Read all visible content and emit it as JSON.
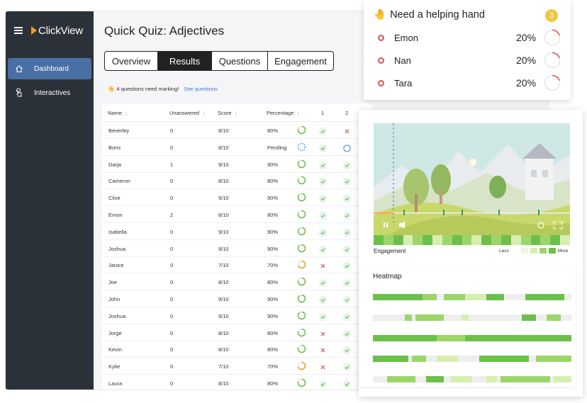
{
  "app": {
    "logo_text": "ClickView",
    "brand_color": "#f59a23",
    "nav": [
      {
        "label": "Dashboard",
        "icon": "home-icon",
        "active": true
      },
      {
        "label": "Interactives",
        "icon": "touch-icon",
        "active": false
      }
    ]
  },
  "page": {
    "title": "Quick Quiz: Adjectives",
    "tabs": [
      {
        "label": "Overview",
        "active": false
      },
      {
        "label": "Results",
        "active": true
      },
      {
        "label": "Questions",
        "active": false
      },
      {
        "label": "Engagement",
        "active": false
      }
    ],
    "notice": {
      "emoji": "👋",
      "text": "4 questions need marking!",
      "link": "See questions"
    }
  },
  "table": {
    "columns": [
      "Name",
      "Unanswered",
      "Score",
      "Percentage",
      "1",
      "2"
    ],
    "rows": [
      {
        "name": "Beverley",
        "unanswered": "0",
        "score": "8/10",
        "percentage": "80%",
        "progress": 0.8,
        "q1": "correct",
        "q2": "wrong"
      },
      {
        "name": "Boris",
        "unanswered": "0",
        "score": "8/10",
        "percentage": "Pending",
        "progress": null,
        "q1": "correct",
        "q2": "pending"
      },
      {
        "name": "Darja",
        "unanswered": "1",
        "score": "9/10",
        "percentage": "90%",
        "progress": 0.9,
        "q1": "correct",
        "q2": "correct"
      },
      {
        "name": "Cameron",
        "unanswered": "0",
        "score": "8/10",
        "percentage": "80%",
        "progress": 0.8,
        "q1": "correct",
        "q2": "correct"
      },
      {
        "name": "Clive",
        "unanswered": "0",
        "score": "9/10",
        "percentage": "90%",
        "progress": 0.9,
        "q1": "correct",
        "q2": "correct"
      },
      {
        "name": "Emon",
        "unanswered": "2",
        "score": "8/10",
        "percentage": "80%",
        "progress": 0.8,
        "q1": "correct",
        "q2": "correct"
      },
      {
        "name": "Isabella",
        "unanswered": "0",
        "score": "9/10",
        "percentage": "90%",
        "progress": 0.9,
        "q1": "correct",
        "q2": "correct"
      },
      {
        "name": "Joshua",
        "unanswered": "0",
        "score": "9/10",
        "percentage": "90%",
        "progress": 0.9,
        "q1": "correct",
        "q2": "correct"
      },
      {
        "name": "Janice",
        "unanswered": "0",
        "score": "7/10",
        "percentage": "70%",
        "progress": 0.7,
        "q1": "wrong",
        "q2": "correct"
      },
      {
        "name": "Joe",
        "unanswered": "0",
        "score": "8/10",
        "percentage": "80%",
        "progress": 0.8,
        "q1": "correct",
        "q2": "correct"
      },
      {
        "name": "John",
        "unanswered": "0",
        "score": "9/10",
        "percentage": "90%",
        "progress": 0.9,
        "q1": "correct",
        "q2": "correct"
      },
      {
        "name": "Joshua",
        "unanswered": "0",
        "score": "9/10",
        "percentage": "90%",
        "progress": 0.9,
        "q1": "correct",
        "q2": "correct"
      },
      {
        "name": "Jorge",
        "unanswered": "0",
        "score": "8/10",
        "percentage": "80%",
        "progress": 0.8,
        "q1": "wrong",
        "q2": "correct"
      },
      {
        "name": "Kevin",
        "unanswered": "0",
        "score": "8/10",
        "percentage": "80%",
        "progress": 0.8,
        "q1": "wrong",
        "q2": "correct"
      },
      {
        "name": "Kylie",
        "unanswered": "0",
        "score": "7/10",
        "percentage": "70%",
        "progress": 0.7,
        "q1": "wrong",
        "q2": "correct"
      },
      {
        "name": "Laura",
        "unanswered": "0",
        "score": "8/10",
        "percentage": "80%",
        "progress": 0.8,
        "q1": "correct",
        "q2": "correct"
      }
    ]
  },
  "help": {
    "emoji": "🤚",
    "title": "Need a helping hand",
    "count": "3",
    "students": [
      {
        "name": "Emon",
        "percent": "20%",
        "progress": 0.2
      },
      {
        "name": "Nan",
        "percent": "20%",
        "progress": 0.2
      },
      {
        "name": "Tara",
        "percent": "20%",
        "progress": 0.2
      }
    ]
  },
  "video": {
    "time": "0:01",
    "engagement_label": "Engagement",
    "legend_less": "Less",
    "legend_more": "More"
  },
  "heatmap": {
    "title": "Heatmap"
  },
  "colors": {
    "correct": "#5cb85c",
    "wrong": "#d9534f",
    "pending": "#3a7bd5",
    "high": "#6cc04a",
    "mid": "#e8a020",
    "green_dark": "#6cc04a",
    "green_mid": "#9cd66a",
    "green_light": "#d6efb0"
  }
}
